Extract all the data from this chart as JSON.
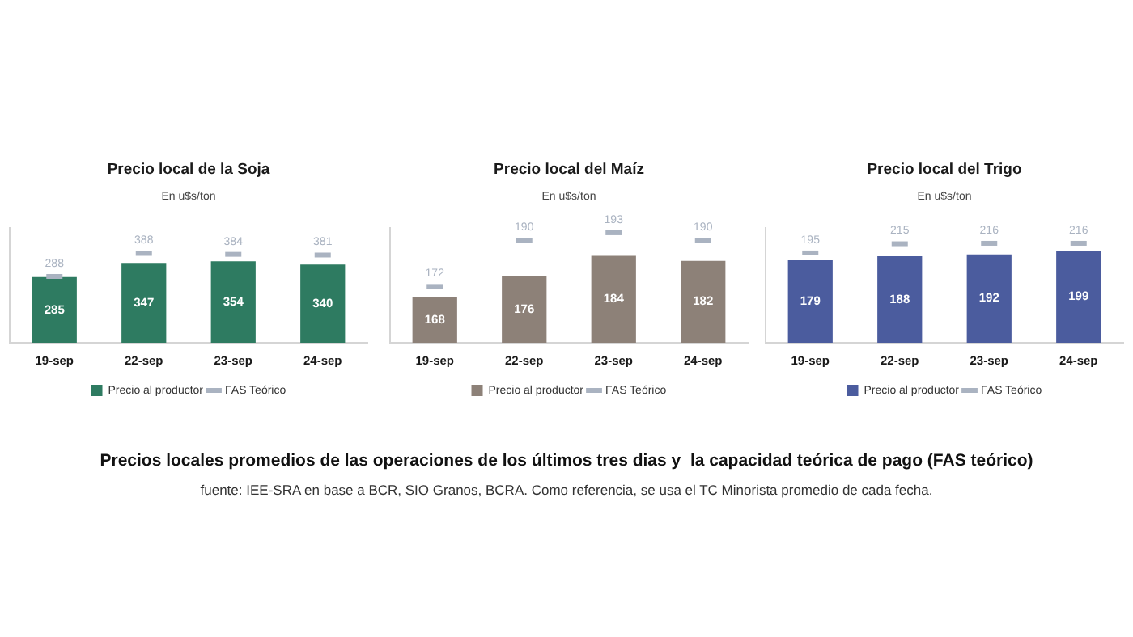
{
  "chart_data": [
    {
      "type": "bar",
      "title": "Precio local de la Soja",
      "subtitle": "En u$s/ton",
      "categories": [
        "19-sep",
        "22-sep",
        "23-sep",
        "24-sep"
      ],
      "series": [
        {
          "name": "Precio al productor",
          "type": "bar",
          "color": "#2e7b61",
          "values": [
            285,
            347,
            354,
            340
          ]
        },
        {
          "name": "FAS Teórico",
          "type": "scatter",
          "color": "#aab3c1",
          "values": [
            288,
            388,
            384,
            381
          ]
        }
      ],
      "ylim": [
        0,
        500
      ],
      "tick_labels": "x",
      "data_labels": true,
      "legend": "bottom"
    },
    {
      "type": "bar",
      "title": "Precio local del Maíz",
      "subtitle": "En u$s/ton",
      "categories": [
        "19-sep",
        "22-sep",
        "23-sep",
        "24-sep"
      ],
      "series": [
        {
          "name": "Precio al productor",
          "type": "bar",
          "color": "#8d8178",
          "values": [
            168,
            176,
            184,
            182
          ]
        },
        {
          "name": "FAS Teórico",
          "type": "scatter",
          "color": "#aab3c1",
          "values": [
            172,
            190,
            193,
            190
          ]
        }
      ],
      "ylim": [
        150,
        195
      ],
      "tick_labels": "x",
      "data_labels": true,
      "legend": "bottom"
    },
    {
      "type": "bar",
      "title": "Precio local del Trigo",
      "subtitle": "En u$s/ton",
      "categories": [
        "19-sep",
        "22-sep",
        "23-sep",
        "24-sep"
      ],
      "series": [
        {
          "name": "Precio al productor",
          "type": "bar",
          "color": "#4b5c9e",
          "values": [
            179,
            188,
            192,
            199
          ]
        },
        {
          "name": "FAS Teórico",
          "type": "scatter",
          "color": "#aab3c1",
          "values": [
            195,
            215,
            216,
            216
          ]
        }
      ],
      "ylim": [
        0,
        250
      ],
      "tick_labels": "x",
      "data_labels": true,
      "legend": "bottom"
    },
    {
      "type": "other",
      "title": "Precios locales promedios de las operaciones de los últimos tres dias y  la capacidad teórica de pago (FAS teórico)",
      "annotations": [
        "fuente: IEE-SRA en base a BCR, SIO Granos, BCRA. Como referencia, se usa el TC Minorista promedio de cada fecha."
      ]
    }
  ]
}
